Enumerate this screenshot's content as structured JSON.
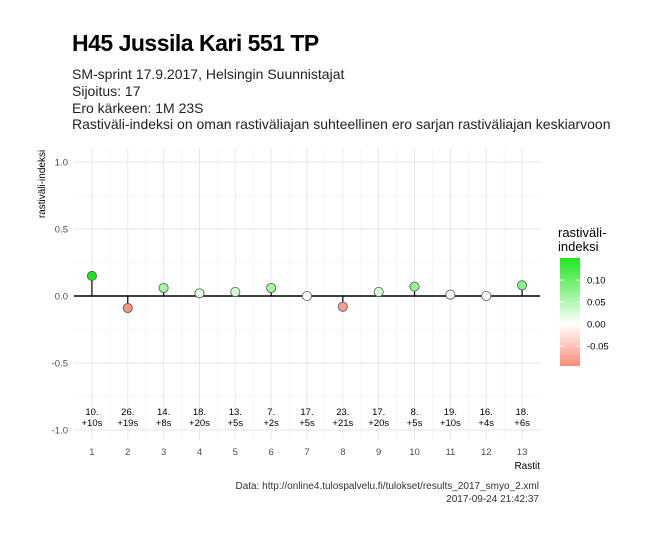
{
  "header": {
    "title": "H45 Jussila Kari 551 TP",
    "subtitle_lines": [
      "SM-sprint 17.9.2017, Helsingin Suunnistajat",
      "Sijoitus: 17",
      "Ero kärkeen: 1M 23S",
      "Rastiväli-indeksi on oman rastiväliajan suhteellinen ero sarjan rastiväliajan keskiarvoon"
    ]
  },
  "caption": {
    "source": "Data: http://online4.tulospalvelu.fi/tulokset/results_2017_smyo_2.xml",
    "timestamp": "2017-09-24 21:42:37"
  },
  "chart_data": {
    "type": "scatter",
    "xlabel": "Rastit",
    "ylabel": "rastiväli-indeksi",
    "xlim": [
      0.5,
      13.5
    ],
    "ylim": [
      -1.0,
      1.0
    ],
    "x_ticks": [
      1,
      2,
      3,
      4,
      5,
      6,
      7,
      8,
      9,
      10,
      11,
      12,
      13
    ],
    "y_ticks": [
      -1.0,
      -0.5,
      0.0,
      0.5,
      1.0
    ],
    "y_tick_labels": [
      "-1.0",
      "-0.5",
      "0.0",
      "0.5",
      "1.0"
    ],
    "grid": true,
    "x": [
      1,
      2,
      3,
      4,
      5,
      6,
      7,
      8,
      9,
      10,
      11,
      12,
      13
    ],
    "values": [
      0.15,
      -0.09,
      0.06,
      0.02,
      0.03,
      0.06,
      0.0,
      -0.08,
      0.03,
      0.07,
      0.01,
      0.0,
      0.08
    ],
    "point_labels": [
      [
        "10.",
        "+10s"
      ],
      [
        "26.",
        "+19s"
      ],
      [
        "14.",
        "+8s"
      ],
      [
        "18.",
        "+20s"
      ],
      [
        "13.",
        "+5s"
      ],
      [
        "7.",
        "+2s"
      ],
      [
        "17.",
        "+5s"
      ],
      [
        "23.",
        "+21s"
      ],
      [
        "17.",
        "+20s"
      ],
      [
        "8.",
        "+5s"
      ],
      [
        "19.",
        "+10s"
      ],
      [
        "16.",
        "+4s"
      ],
      [
        "18.",
        "+6s"
      ]
    ],
    "legend": {
      "title_lines": [
        "rastiväli-",
        "indeksi"
      ],
      "ticks": [
        0.1,
        0.05,
        0.0,
        -0.05
      ],
      "tick_labels": [
        "0.10",
        "0.05",
        "0.00",
        "-0.05"
      ],
      "range": [
        -0.095,
        0.15
      ],
      "placement": "right",
      "low_color": "#fa8c78",
      "mid_color": "#ffffff",
      "high_color": "#1ee61e"
    },
    "colors": {
      "panel_bg": "#ffffff",
      "grid": "#e5e5e5",
      "line": "#000000"
    }
  }
}
